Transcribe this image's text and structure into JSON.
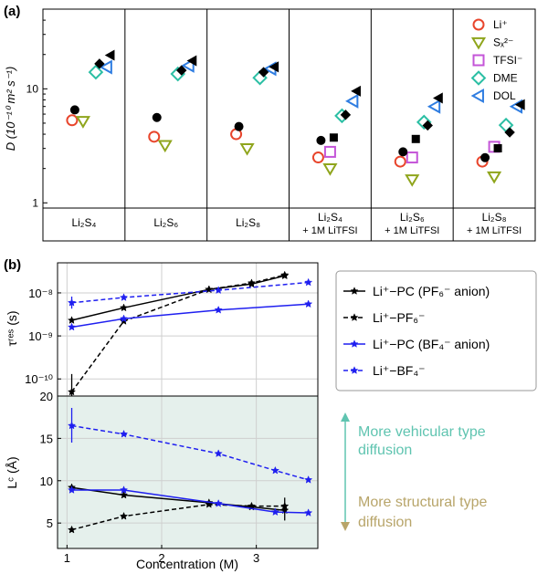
{
  "panel_a": {
    "label": "(a)",
    "ylabel": "D (10⁻¹⁰ m² s⁻¹)",
    "yticks": [
      "1",
      "10"
    ],
    "groups": [
      {
        "line1": "Li₂S₄",
        "line2": ""
      },
      {
        "line1": "Li₂S₆",
        "line2": ""
      },
      {
        "line1": "Li₂S₈",
        "line2": ""
      },
      {
        "line1": "Li₂S₄",
        "line2": "+ 1M LiTFSI"
      },
      {
        "line1": "Li₂S₆",
        "line2": "+ 1M LiTFSI"
      },
      {
        "line1": "Li₂S₈",
        "line2": "+ 1M LiTFSI"
      }
    ],
    "legend": [
      "Li⁺",
      "Sₓ²⁻",
      "TFSI⁻",
      "DME",
      "DOL"
    ]
  },
  "panel_b": {
    "label": "(b)",
    "xlabel": "Concentration (M)",
    "xticks": [
      "1",
      "2",
      "3"
    ],
    "top_ylabel": "τʳᵉˢ (s)",
    "top_yticks": [
      "10⁻¹⁰",
      "10⁻⁹",
      "10⁻⁸"
    ],
    "bottom_ylabel": "Lᶜ (Å)",
    "bottom_yticks": [
      "5",
      "10",
      "15",
      "20"
    ],
    "legend": [
      "Li⁺−PC (PF₆⁻ anion)",
      "Li⁺−PF₆⁻",
      "Li⁺−PC (BF₄⁻ anion)",
      "Li⁺−BF₄⁻"
    ],
    "annotation_top": [
      "More vehicular type",
      "diffusion"
    ],
    "annotation_bottom": [
      "More structural type",
      "diffusion"
    ]
  },
  "colors": {
    "Li": "#e8452c",
    "Sx": "#8fa51c",
    "TFSI": "#c455d8",
    "DME": "#2bbfa4",
    "DOL": "#2f7de1",
    "pf6": "#000000",
    "bf4": "#1f1ff0",
    "vehicular": "#5fc4b0",
    "structural": "#b8a56a",
    "band": "#e4f0ee"
  },
  "chart_data": [
    {
      "type": "scatter",
      "panel": "a",
      "yscale": "log",
      "ylim": [
        0.9,
        50
      ],
      "categories": [
        "Li2S4",
        "Li2S6",
        "Li2S8",
        "Li2S4 + 1M LiTFSI",
        "Li2S6 + 1M LiTFSI",
        "Li2S8 + 1M LiTFSI"
      ],
      "series": [
        {
          "name": "Li⁺",
          "values": [
            5.3,
            3.8,
            4.0,
            2.5,
            2.3,
            2.3
          ]
        },
        {
          "name": "Sₓ²⁻",
          "values": [
            5.2,
            3.2,
            3.0,
            2.0,
            1.6,
            1.7
          ]
        },
        {
          "name": "TFSI⁻",
          "values": [
            null,
            null,
            null,
            2.8,
            2.5,
            3.1
          ]
        },
        {
          "name": "DME",
          "values": [
            14.0,
            13.5,
            12.5,
            5.8,
            5.1,
            4.8
          ]
        },
        {
          "name": "DOL",
          "values": [
            15.5,
            16.0,
            15.0,
            7.8,
            7.0,
            7.0
          ]
        }
      ],
      "black_markers": [
        {
          "marker": "circle",
          "values": [
            6.3,
            5.4,
            4.5,
            3.4,
            2.7,
            2.4
          ]
        },
        {
          "marker": "square",
          "values": [
            null,
            null,
            null,
            3.6,
            3.5,
            2.9
          ]
        },
        {
          "marker": "diamond",
          "values": [
            16.0,
            14.0,
            13.5,
            5.7,
            4.6,
            4.0
          ]
        },
        {
          "marker": "triangle-left",
          "values": [
            19.0,
            17.0,
            15.0,
            9.2,
            8.0,
            7.0
          ]
        }
      ]
    },
    {
      "type": "line",
      "panel": "b-top",
      "yscale": "log",
      "xlim": [
        0.9,
        3.65
      ],
      "ylim": [
        4e-11,
        5e-08
      ],
      "series": [
        {
          "name": "Li⁺−PC (PF₆⁻ anion)",
          "x": [
            1.05,
            1.6,
            2.5,
            2.95,
            3.3
          ],
          "y": [
            2.3e-09,
            4.5e-09,
            1.2e-08,
            1.6e-08,
            2.5e-08
          ]
        },
        {
          "name": "Li⁺−PF₆⁻",
          "x": [
            1.05,
            1.6,
            2.5,
            2.95,
            3.3
          ],
          "y": [
            5e-11,
            2.2e-09,
            1.2e-08,
            1.7e-08,
            2.6e-08
          ]
        },
        {
          "name": "Li⁺−PC (BF₄⁻ anion)",
          "x": [
            1.05,
            1.6,
            2.6,
            3.55
          ],
          "y": [
            1.6e-09,
            2.5e-09,
            4e-09,
            5.5e-09
          ]
        },
        {
          "name": "Li⁺−BF₄⁻",
          "x": [
            1.05,
            1.6,
            2.6,
            3.55
          ],
          "y": [
            5.9e-09,
            7.8e-09,
            1.15e-08,
            1.75e-08
          ]
        }
      ]
    },
    {
      "type": "line",
      "panel": "b-bottom",
      "xlim": [
        0.9,
        3.65
      ],
      "ylim": [
        2,
        20
      ],
      "series": [
        {
          "name": "Li⁺−PC (PF₆⁻ anion)",
          "x": [
            1.05,
            1.6,
            2.5,
            2.95,
            3.3
          ],
          "y": [
            9.2,
            8.3,
            7.4,
            6.9,
            6.5
          ]
        },
        {
          "name": "Li⁺−PF₆⁻",
          "x": [
            1.05,
            1.6,
            2.5,
            2.95,
            3.3
          ],
          "y": [
            4.2,
            5.8,
            7.2,
            7.0,
            7.0
          ]
        },
        {
          "name": "Li⁺−PC (BF₄⁻ anion)",
          "x": [
            1.05,
            1.6,
            2.6,
            3.2,
            3.55
          ],
          "y": [
            8.9,
            8.9,
            7.3,
            6.3,
            6.2
          ]
        },
        {
          "name": "Li⁺−BF₄⁻",
          "x": [
            1.05,
            1.6,
            2.6,
            3.2,
            3.55
          ],
          "y": [
            16.5,
            15.5,
            13.2,
            11.2,
            10.1
          ]
        }
      ]
    }
  ]
}
